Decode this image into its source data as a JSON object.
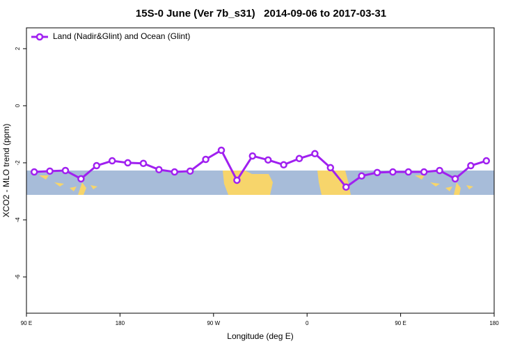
{
  "chart_data": {
    "type": "line",
    "title": "15S-0 June (Ver 7b_s31)   2014-09-06 to 2017-03-31",
    "x_label": "Longitude (deg E)",
    "y_label": "XCO2 - MLO trend (ppm)",
    "x": [
      97.5,
      112.5,
      127.5,
      142.5,
      157.5,
      172.5,
      187.5,
      202.5,
      217.5,
      232.5,
      247.5,
      262.5,
      277.5,
      292.5,
      307.5,
      322.5,
      337.5,
      352.5,
      367.5,
      382.5,
      397.5,
      412.5,
      427.5,
      442.5,
      457.5,
      472.5,
      487.5,
      502.5,
      517.5,
      532.5
    ],
    "series": [
      {
        "name": "Land (Nadir&Glint) and Ocean (Glint)",
        "color": "#a020f0",
        "values": [
          -2.32,
          -2.29,
          -2.27,
          -2.56,
          -2.1,
          -1.93,
          -2.0,
          -2.02,
          -2.24,
          -2.32,
          -2.29,
          -1.88,
          -1.56,
          -2.61,
          -1.76,
          -1.9,
          -2.07,
          -1.85,
          -1.68,
          -2.17,
          -2.85,
          -2.46,
          -2.34,
          -2.32,
          -2.32,
          -2.32,
          -2.27,
          -2.56,
          -2.1,
          -1.93
        ]
      }
    ],
    "xlim": [
      90,
      540
    ],
    "xticks": [
      {
        "value": 90,
        "label": "90 E"
      },
      180,
      {
        "value": 270,
        "label": "90 W"
      },
      {
        "value": 360,
        "label": "0"
      },
      {
        "value": 450,
        "label": "90 E"
      },
      {
        "value": 540,
        "label": "180"
      }
    ],
    "ylim": [
      -7.27,
      2.73
    ],
    "yticks": [
      -6,
      -4,
      -2,
      0,
      2
    ],
    "legend": "top-left"
  }
}
